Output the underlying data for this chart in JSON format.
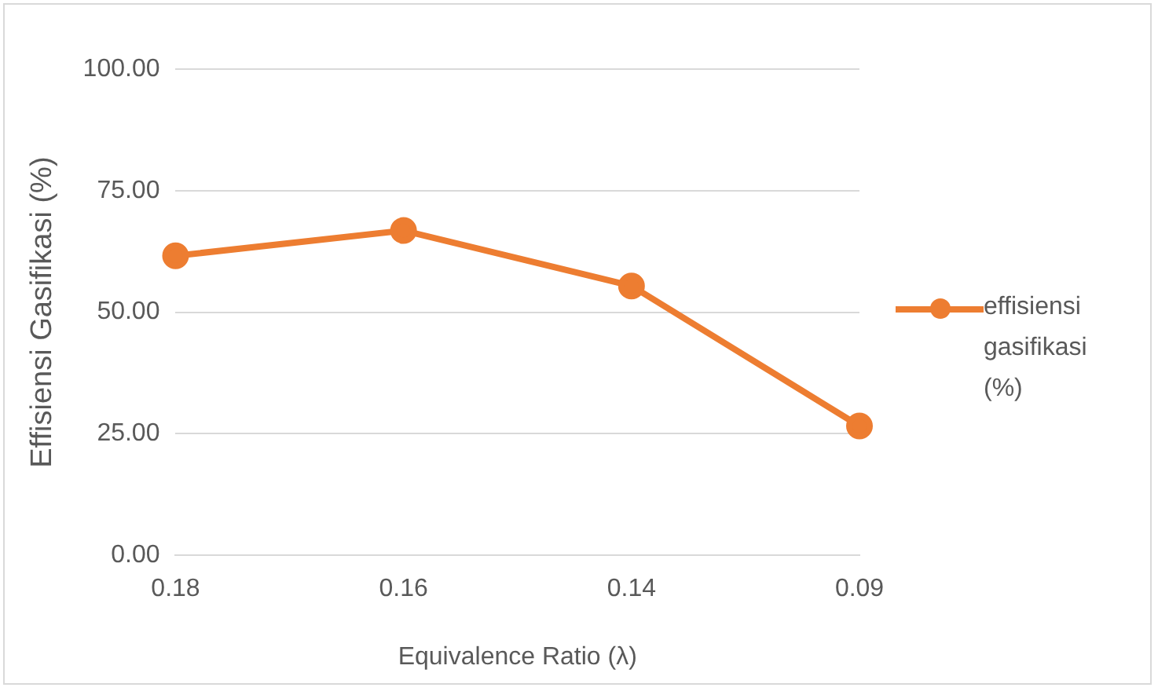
{
  "chart_data": {
    "type": "line",
    "xlabel": "Equivalence Ratio (λ)",
    "ylabel": "Effisiensi Gasifikasi (%)",
    "categories": [
      "0.18",
      "0.16",
      "0.14",
      "0.09"
    ],
    "series": [
      {
        "name": "effisiensi gasifikasi (%)",
        "color": "#ed7d31",
        "values": [
          61.6,
          66.8,
          55.4,
          26.6
        ]
      }
    ],
    "ylim": [
      0,
      100
    ],
    "yticks": [
      {
        "value": 0,
        "label": "0.00"
      },
      {
        "value": 25,
        "label": "25.00"
      },
      {
        "value": 50,
        "label": "50.00"
      },
      {
        "value": 75,
        "label": "75.00"
      },
      {
        "value": 100,
        "label": "100.00"
      }
    ],
    "grid": "y",
    "legend": "right",
    "marker": "circle",
    "line_style": "solid"
  }
}
